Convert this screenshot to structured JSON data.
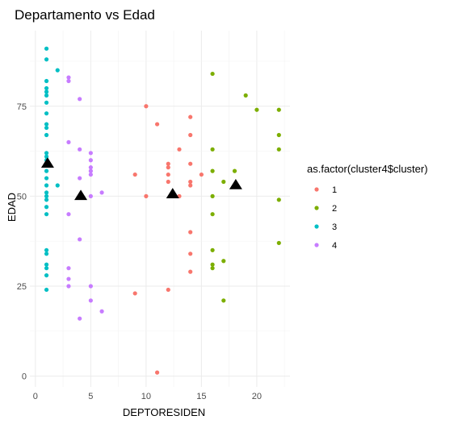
{
  "chart_data": {
    "type": "scatter",
    "title": "Departamento vs Edad",
    "xlabel": "DEPTORESIDEN",
    "ylabel": "EDAD",
    "xlim": [
      -0.5,
      23
    ],
    "ylim": [
      -3,
      96
    ],
    "x_ticks": [
      0,
      5,
      10,
      15,
      20
    ],
    "y_ticks": [
      0,
      25,
      50,
      75
    ],
    "grid": true,
    "legend": {
      "title": "as.factor(cluster4$cluster)",
      "position": "right",
      "entries": [
        "1",
        "2",
        "3",
        "4"
      ]
    },
    "series": [
      {
        "name": "1",
        "color": "#F8766D",
        "points": [
          [
            9,
            56
          ],
          [
            9,
            23
          ],
          [
            10,
            75
          ],
          [
            10,
            50
          ],
          [
            11,
            70
          ],
          [
            11,
            1
          ],
          [
            12,
            59
          ],
          [
            12,
            58
          ],
          [
            12,
            56
          ],
          [
            12,
            54
          ],
          [
            12,
            24
          ],
          [
            13,
            63
          ],
          [
            13,
            50
          ],
          [
            14,
            72
          ],
          [
            14,
            67
          ],
          [
            14,
            59
          ],
          [
            14,
            54
          ],
          [
            14,
            53
          ],
          [
            14,
            40
          ],
          [
            14,
            34
          ],
          [
            14,
            29
          ],
          [
            15,
            56
          ]
        ]
      },
      {
        "name": "2",
        "color": "#7CAE00",
        "points": [
          [
            16,
            84
          ],
          [
            16,
            63
          ],
          [
            16,
            57
          ],
          [
            16,
            50
          ],
          [
            16,
            45
          ],
          [
            16,
            35
          ],
          [
            16,
            31
          ],
          [
            16,
            30
          ],
          [
            17,
            54
          ],
          [
            17,
            32
          ],
          [
            17,
            21
          ],
          [
            18,
            57
          ],
          [
            19,
            78
          ],
          [
            20,
            74
          ],
          [
            22,
            74
          ],
          [
            22,
            67
          ],
          [
            22,
            63
          ],
          [
            22,
            49
          ],
          [
            22,
            37
          ]
        ]
      },
      {
        "name": "3",
        "color": "#00BFC4",
        "points": [
          [
            1,
            91
          ],
          [
            1,
            88
          ],
          [
            1,
            82
          ],
          [
            1,
            80
          ],
          [
            1,
            79
          ],
          [
            1,
            78
          ],
          [
            1,
            76
          ],
          [
            1,
            73
          ],
          [
            1,
            70
          ],
          [
            1,
            69
          ],
          [
            1,
            67
          ],
          [
            1,
            62
          ],
          [
            1,
            61
          ],
          [
            1,
            60
          ],
          [
            1,
            57
          ],
          [
            1,
            55
          ],
          [
            1,
            53
          ],
          [
            1,
            51
          ],
          [
            1,
            50
          ],
          [
            1,
            49
          ],
          [
            1,
            47
          ],
          [
            1,
            45
          ],
          [
            1,
            35
          ],
          [
            1,
            34
          ],
          [
            1,
            31
          ],
          [
            1,
            30
          ],
          [
            1,
            28
          ],
          [
            1,
            24
          ],
          [
            2,
            85
          ],
          [
            2,
            53
          ]
        ]
      },
      {
        "name": "4",
        "color": "#C77CFF",
        "points": [
          [
            3,
            83
          ],
          [
            3,
            82
          ],
          [
            3,
            65
          ],
          [
            3,
            45
          ],
          [
            3,
            30
          ],
          [
            3,
            27
          ],
          [
            3,
            25
          ],
          [
            4,
            77
          ],
          [
            4,
            63
          ],
          [
            4,
            55
          ],
          [
            4,
            38
          ],
          [
            4,
            16
          ],
          [
            5,
            62
          ],
          [
            5,
            60
          ],
          [
            5,
            58
          ],
          [
            5,
            57
          ],
          [
            5,
            56
          ],
          [
            5,
            50
          ],
          [
            5,
            25
          ],
          [
            5,
            21
          ],
          [
            6,
            51
          ],
          [
            6,
            18
          ]
        ]
      }
    ],
    "centroids": {
      "marker": "triangle",
      "color": "#000000",
      "points": [
        [
          1.1,
          59
        ],
        [
          4.1,
          50
        ],
        [
          12.4,
          50.5
        ],
        [
          18.1,
          53
        ]
      ]
    }
  }
}
